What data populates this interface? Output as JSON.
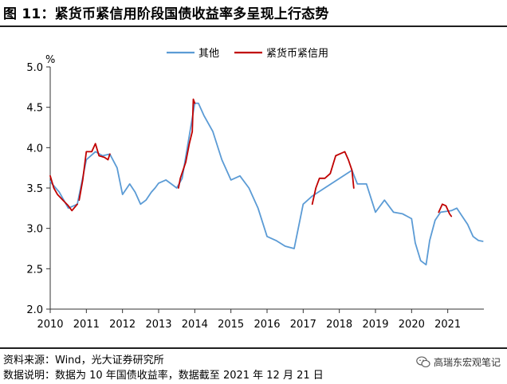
{
  "figure_title": "图 11：紧货币紧信用阶段国债收益率多呈现上行态势",
  "source_note": "资料来源：Wind，光大证券研究所",
  "explain_note": "数据说明：数据为 10 年国债收益率，数据截至 2021 年 12 月 21 日",
  "brand": {
    "name": "高瑞东宏观笔记",
    "icon": "wechat-icon"
  },
  "chart_data": {
    "type": "line",
    "ylabel": "%",
    "ylim": [
      2.0,
      5.0
    ],
    "yticks": [
      "2.0",
      "2.5",
      "3.0",
      "3.5",
      "4.0",
      "4.5",
      "5.0"
    ],
    "xticks": [
      "2010",
      "2011",
      "2012",
      "2013",
      "2014",
      "2015",
      "2016",
      "2017",
      "2018",
      "2019",
      "2020",
      "2021"
    ],
    "xlim": [
      2010.0,
      2022.0
    ],
    "grid": false,
    "legend_position": "top-center",
    "colors": {
      "其他": "#5b9bd5",
      "紧货币紧信用": "#c00000",
      "axis": "#333333"
    },
    "series": [
      {
        "name": "其他",
        "points": [
          [
            2010.0,
            3.58
          ],
          [
            2010.25,
            3.45
          ],
          [
            2010.5,
            3.25
          ],
          [
            2010.75,
            3.3
          ],
          [
            2011.0,
            3.85
          ],
          [
            2011.25,
            3.95
          ],
          [
            2011.45,
            3.9
          ],
          [
            2011.65,
            3.92
          ],
          [
            2011.85,
            3.75
          ],
          [
            2012.0,
            3.42
          ],
          [
            2012.2,
            3.55
          ],
          [
            2012.35,
            3.45
          ],
          [
            2012.5,
            3.3
          ],
          [
            2012.65,
            3.35
          ],
          [
            2012.8,
            3.45
          ],
          [
            2012.9,
            3.5
          ],
          [
            2013.0,
            3.56
          ],
          [
            2013.2,
            3.6
          ],
          [
            2013.35,
            3.55
          ],
          [
            2013.5,
            3.5
          ],
          [
            2013.65,
            3.62
          ],
          [
            2014.0,
            4.55
          ],
          [
            2014.1,
            4.55
          ],
          [
            2014.25,
            4.4
          ],
          [
            2014.5,
            4.2
          ],
          [
            2014.75,
            3.85
          ],
          [
            2015.0,
            3.6
          ],
          [
            2015.25,
            3.65
          ],
          [
            2015.5,
            3.5
          ],
          [
            2015.75,
            3.25
          ],
          [
            2016.0,
            2.9
          ],
          [
            2016.25,
            2.85
          ],
          [
            2016.5,
            2.78
          ],
          [
            2016.75,
            2.75
          ],
          [
            2017.0,
            3.3
          ],
          [
            2017.25,
            3.4
          ],
          [
            2018.35,
            3.72
          ],
          [
            2018.5,
            3.55
          ],
          [
            2018.75,
            3.55
          ],
          [
            2019.0,
            3.2
          ],
          [
            2019.25,
            3.35
          ],
          [
            2019.5,
            3.2
          ],
          [
            2019.75,
            3.18
          ],
          [
            2020.0,
            3.12
          ],
          [
            2020.1,
            2.82
          ],
          [
            2020.25,
            2.6
          ],
          [
            2020.4,
            2.55
          ],
          [
            2020.5,
            2.85
          ],
          [
            2020.65,
            3.1
          ],
          [
            2020.8,
            3.2
          ],
          [
            2021.1,
            3.22
          ],
          [
            2021.25,
            3.25
          ],
          [
            2021.4,
            3.15
          ],
          [
            2021.55,
            3.05
          ],
          [
            2021.7,
            2.9
          ],
          [
            2021.85,
            2.85
          ],
          [
            2021.97,
            2.84
          ]
        ]
      },
      {
        "name": "紧货币紧信用",
        "segments": [
          [
            [
              2010.0,
              3.65
            ],
            [
              2010.1,
              3.5
            ],
            [
              2010.2,
              3.42
            ],
            [
              2010.35,
              3.35
            ],
            [
              2010.5,
              3.28
            ],
            [
              2010.6,
              3.22
            ],
            [
              2010.75,
              3.3
            ]
          ],
          [
            [
              2010.8,
              3.35
            ],
            [
              2010.9,
              3.6
            ],
            [
              2011.0,
              3.95
            ],
            [
              2011.15,
              3.95
            ],
            [
              2011.25,
              4.05
            ],
            [
              2011.35,
              3.9
            ],
            [
              2011.5,
              3.88
            ],
            [
              2011.6,
              3.85
            ],
            [
              2011.65,
              3.92
            ]
          ],
          [
            [
              2013.55,
              3.5
            ],
            [
              2013.6,
              3.62
            ],
            [
              2013.75,
              3.82
            ],
            [
              2013.85,
              4.05
            ],
            [
              2013.93,
              4.2
            ],
            [
              2013.96,
              4.6
            ],
            [
              2014.0,
              4.55
            ]
          ],
          [
            [
              2017.25,
              3.3
            ],
            [
              2017.35,
              3.5
            ],
            [
              2017.45,
              3.62
            ],
            [
              2017.6,
              3.62
            ],
            [
              2017.75,
              3.68
            ],
            [
              2017.9,
              3.9
            ],
            [
              2018.0,
              3.92
            ],
            [
              2018.15,
              3.95
            ],
            [
              2018.25,
              3.85
            ],
            [
              2018.35,
              3.72
            ],
            [
              2018.4,
              3.5
            ]
          ],
          [
            [
              2020.75,
              3.2
            ],
            [
              2020.85,
              3.3
            ],
            [
              2020.95,
              3.28
            ],
            [
              2021.05,
              3.18
            ],
            [
              2021.1,
              3.15
            ]
          ]
        ]
      }
    ]
  }
}
